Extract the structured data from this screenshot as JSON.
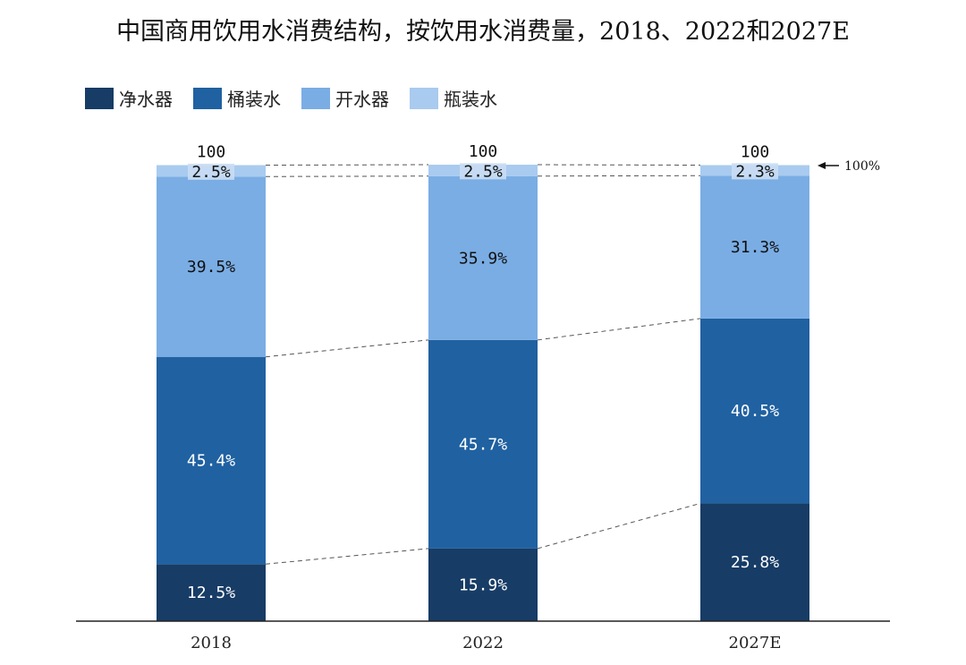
{
  "chart_data": {
    "type": "bar",
    "stacked": true,
    "title": "中国商用饮用水消费结构，按饮用水消费量，2018、2022和2027E",
    "categories": [
      "2018",
      "2022",
      "2027E"
    ],
    "totals": [
      "100",
      "100",
      "100"
    ],
    "series": [
      {
        "name": "净水器",
        "color": "#173c66",
        "values": [
          12.5,
          15.9,
          25.8
        ],
        "labels": [
          "12.5%",
          "15.9%",
          "25.8%"
        ]
      },
      {
        "name": "桶装水",
        "color": "#2061a1",
        "values": [
          45.4,
          45.7,
          40.5
        ],
        "labels": [
          "45.4%",
          "45.7%",
          "40.5%"
        ]
      },
      {
        "name": "开水器",
        "color": "#7aade4",
        "values": [
          39.5,
          35.9,
          31.3
        ],
        "labels": [
          "39.5%",
          "35.9%",
          "31.3%"
        ]
      },
      {
        "name": "瓶装水",
        "color": "#a9cbef",
        "values": [
          2.5,
          2.5,
          2.3
        ],
        "labels": [
          "2.5%",
          "2.5%",
          "2.3%"
        ]
      }
    ],
    "ylim": [
      0,
      100
    ],
    "legend_position": "top-left",
    "grid": false,
    "annotation": "100%"
  }
}
